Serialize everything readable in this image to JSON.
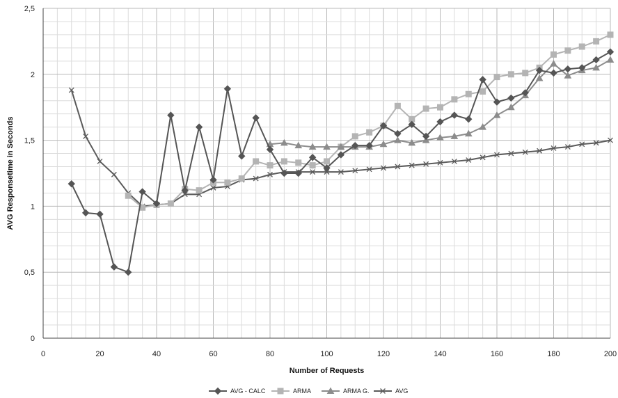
{
  "chart_data": {
    "type": "line",
    "xlabel": "Number of Requests",
    "ylabel": "AVG Responsetime in Seconds",
    "xlim": [
      0,
      200
    ],
    "ylim": [
      0,
      2.5
    ],
    "x_ticks": [
      "0",
      "20",
      "40",
      "60",
      "80",
      "100",
      "120",
      "140",
      "160",
      "180",
      "200"
    ],
    "y_ticks": [
      "0",
      "0,5",
      "1",
      "1,5",
      "2",
      "2,5"
    ],
    "grid": true,
    "legend_position": "bottom",
    "series": [
      {
        "name": "AVG - CALC",
        "color": "#555555",
        "marker": "diamond",
        "x": [
          10,
          15,
          20,
          25,
          30,
          35,
          40,
          45,
          50,
          55,
          60,
          65,
          70,
          75,
          80,
          85,
          90,
          95,
          100,
          105,
          110,
          115,
          120,
          125,
          130,
          135,
          140,
          145,
          150,
          155,
          160,
          165,
          170,
          175,
          180,
          185,
          190,
          195,
          200
        ],
        "y": [
          1.17,
          0.95,
          0.94,
          0.54,
          0.5,
          1.11,
          1.02,
          1.69,
          1.12,
          1.6,
          1.2,
          1.89,
          1.38,
          1.67,
          1.43,
          1.25,
          1.25,
          1.37,
          1.29,
          1.39,
          1.46,
          1.46,
          1.61,
          1.55,
          1.62,
          1.53,
          1.64,
          1.69,
          1.66,
          1.96,
          1.79,
          1.82,
          1.86,
          2.03,
          2.01,
          2.04,
          2.05,
          2.11,
          2.17
        ]
      },
      {
        "name": "ARMA",
        "color": "#b4b4b4",
        "marker": "square",
        "x": [
          30,
          35,
          40,
          45,
          50,
          55,
          60,
          65,
          70,
          75,
          80,
          85,
          90,
          95,
          100,
          105,
          110,
          115,
          120,
          125,
          130,
          135,
          140,
          145,
          150,
          155,
          160,
          165,
          170,
          175,
          180,
          185,
          190,
          195,
          200
        ],
        "y": [
          1.08,
          0.99,
          1.01,
          1.02,
          1.13,
          1.12,
          1.18,
          1.18,
          1.21,
          1.34,
          1.31,
          1.34,
          1.33,
          1.31,
          1.34,
          1.45,
          1.53,
          1.56,
          1.61,
          1.76,
          1.66,
          1.74,
          1.75,
          1.81,
          1.85,
          1.87,
          1.98,
          2.0,
          2.01,
          2.05,
          2.15,
          2.18,
          2.21,
          2.25,
          2.3
        ]
      },
      {
        "name": "ARMA G.",
        "color": "#8c8c8c",
        "marker": "triangle",
        "x": [
          80,
          85,
          90,
          95,
          100,
          105,
          110,
          115,
          120,
          125,
          130,
          135,
          140,
          145,
          150,
          155,
          160,
          165,
          170,
          175,
          180,
          185,
          190,
          195,
          200
        ],
        "y": [
          1.47,
          1.48,
          1.46,
          1.45,
          1.45,
          1.45,
          1.45,
          1.45,
          1.47,
          1.5,
          1.48,
          1.5,
          1.52,
          1.53,
          1.55,
          1.6,
          1.69,
          1.75,
          1.84,
          1.97,
          2.08,
          1.99,
          2.03,
          2.05,
          2.11
        ]
      },
      {
        "name": "AVG",
        "color": "#5a5a5a",
        "marker": "x",
        "x": [
          10,
          15,
          20,
          25,
          30,
          35,
          40,
          45,
          50,
          55,
          60,
          65,
          70,
          75,
          80,
          85,
          90,
          95,
          100,
          105,
          110,
          115,
          120,
          125,
          130,
          135,
          140,
          145,
          150,
          155,
          160,
          165,
          170,
          175,
          180,
          185,
          190,
          195,
          200
        ],
        "y": [
          1.88,
          1.53,
          1.34,
          1.24,
          1.1,
          1.0,
          1.01,
          1.02,
          1.09,
          1.09,
          1.14,
          1.15,
          1.2,
          1.21,
          1.24,
          1.26,
          1.26,
          1.26,
          1.26,
          1.26,
          1.27,
          1.28,
          1.29,
          1.3,
          1.31,
          1.32,
          1.33,
          1.34,
          1.35,
          1.37,
          1.39,
          1.4,
          1.41,
          1.42,
          1.44,
          1.45,
          1.47,
          1.48,
          1.5
        ]
      }
    ]
  }
}
